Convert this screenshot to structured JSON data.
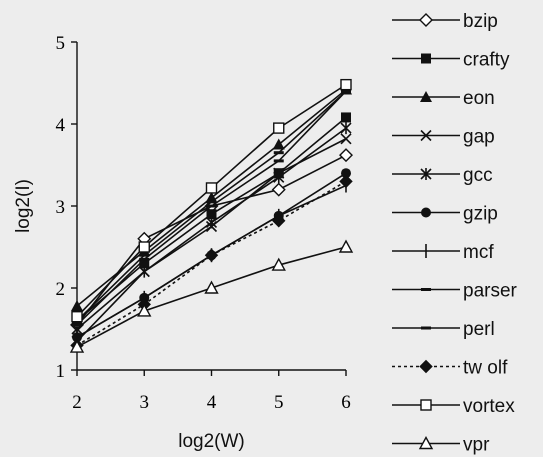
{
  "chart_data": {
    "type": "line",
    "title": "",
    "xlabel": "log2(W)",
    "ylabel": "log2(I)",
    "x": [
      2,
      3,
      4,
      5,
      6
    ],
    "xlim": [
      2,
      6
    ],
    "ylim": [
      1,
      5
    ],
    "xticks": [
      "2",
      "3",
      "4",
      "5",
      "6"
    ],
    "yticks": [
      "1",
      "2",
      "3",
      "4",
      "5"
    ],
    "grid": false,
    "legend_position": "right",
    "series": [
      {
        "name": "bzip",
        "marker": "diamond-open",
        "dash": "solid",
        "values": [
          1.55,
          2.6,
          3.0,
          3.2,
          3.62
        ]
      },
      {
        "name": "crafty",
        "marker": "square-filled",
        "dash": "solid",
        "values": [
          1.6,
          2.3,
          2.9,
          3.4,
          4.08
        ]
      },
      {
        "name": "eon",
        "marker": "triangle-filled",
        "dash": "solid",
        "values": [
          1.78,
          2.45,
          3.1,
          3.75,
          4.42
        ]
      },
      {
        "name": "gap",
        "marker": "x",
        "dash": "solid",
        "values": [
          1.35,
          2.2,
          2.75,
          3.4,
          3.82
        ]
      },
      {
        "name": "gcc",
        "marker": "asterisk",
        "dash": "solid",
        "values": [
          1.5,
          2.2,
          2.8,
          3.35,
          3.95
        ]
      },
      {
        "name": "gzip",
        "marker": "circle-filled",
        "dash": "solid",
        "values": [
          1.4,
          1.88,
          2.4,
          2.88,
          3.4
        ]
      },
      {
        "name": "mcf",
        "marker": "plus",
        "dash": "solid",
        "values": [
          1.4,
          1.88,
          2.4,
          2.88,
          3.25
        ]
      },
      {
        "name": "parser",
        "marker": "dash",
        "dash": "solid",
        "values": [
          1.55,
          2.35,
          3.0,
          3.55,
          4.4
        ]
      },
      {
        "name": "perl",
        "marker": "dash",
        "dash": "solid",
        "values": [
          1.6,
          2.4,
          3.05,
          3.65,
          4.4
        ]
      },
      {
        "name": "tw olf",
        "marker": "diamond-filled",
        "dash": "dotted",
        "values": [
          1.3,
          1.8,
          2.4,
          2.82,
          3.3
        ]
      },
      {
        "name": "vortex",
        "marker": "square-open",
        "dash": "solid",
        "values": [
          1.65,
          2.5,
          3.22,
          3.95,
          4.48
        ]
      },
      {
        "name": "vpr",
        "marker": "triangle-open",
        "dash": "solid",
        "values": [
          1.28,
          1.72,
          2.0,
          2.28,
          2.5
        ]
      }
    ]
  }
}
